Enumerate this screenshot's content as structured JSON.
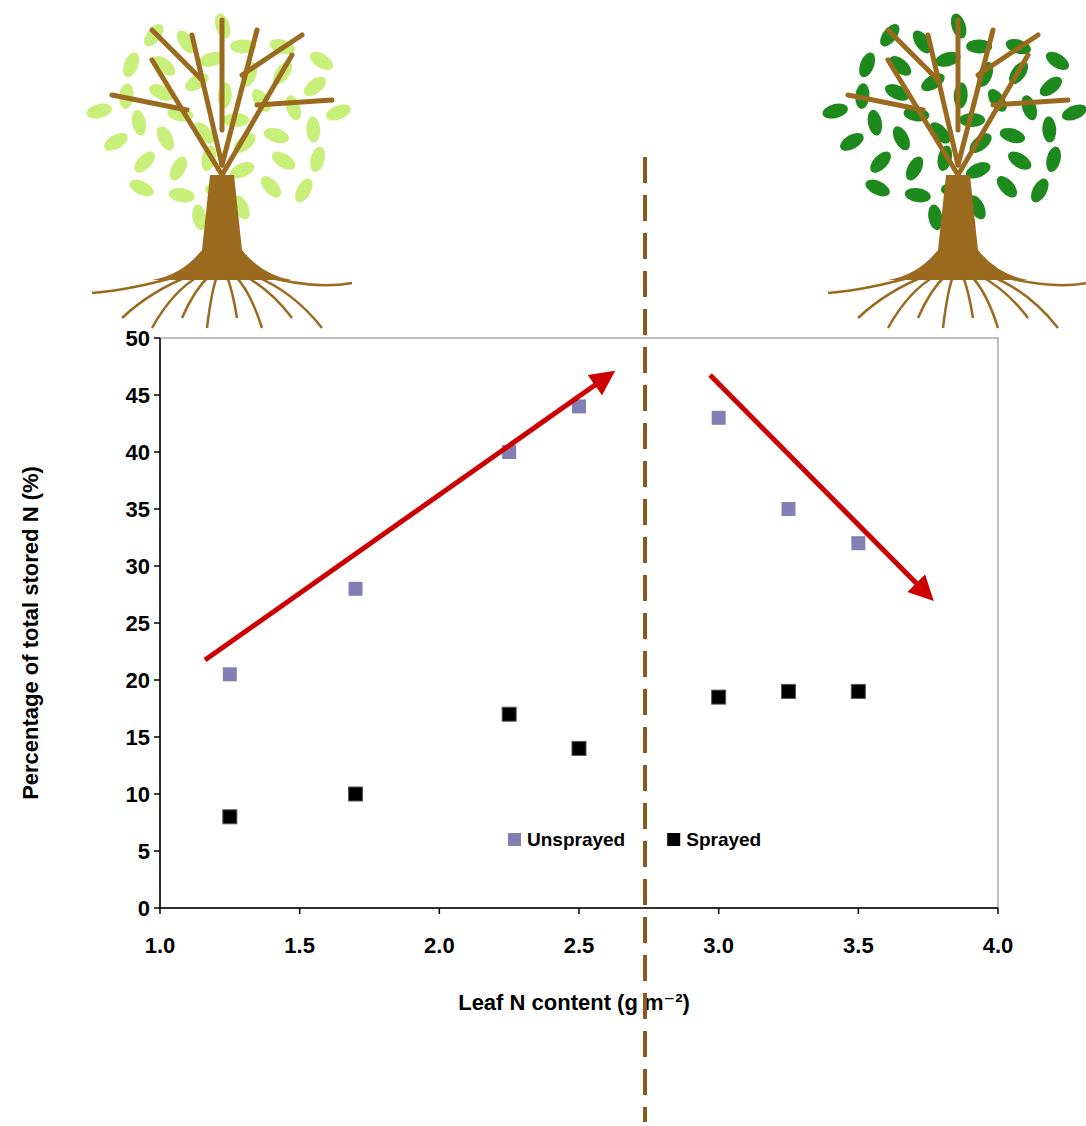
{
  "chart_data": {
    "type": "scatter",
    "x_label": "Leaf N content (g m⁻²)",
    "y_label": "Percentage of total stored N (%)",
    "xlim": [
      1.0,
      4.0
    ],
    "xticks": [
      {
        "value": 1.0,
        "label": "1.0"
      },
      {
        "value": 1.5,
        "label": "1.5"
      },
      {
        "value": 2.0,
        "label": "2.0"
      },
      {
        "value": 2.5,
        "label": "2.5"
      },
      {
        "value": 3.0,
        "label": "3.0"
      },
      {
        "value": 3.5,
        "label": "3.5"
      },
      {
        "value": 4.0,
        "label": "4.0"
      }
    ],
    "ylim": [
      0,
      50
    ],
    "yticks": [
      0,
      5,
      10,
      15,
      20,
      25,
      30,
      35,
      40,
      45,
      50
    ],
    "legend": "bottom",
    "grid": false,
    "series": [
      {
        "name": "Unsprayed",
        "color": "#8080b4",
        "marker": "square",
        "x": [
          1.25,
          1.7,
          2.25,
          2.5,
          3.0,
          3.25,
          3.5
        ],
        "values": [
          20.5,
          28,
          40,
          44,
          43,
          35,
          32
        ]
      },
      {
        "name": "Sprayed",
        "color": "#000000",
        "marker": "square",
        "x": [
          1.25,
          1.7,
          2.25,
          2.5,
          3.0,
          3.25,
          3.5
        ],
        "values": [
          8,
          10,
          17,
          14,
          18.5,
          19,
          19
        ]
      }
    ]
  }
}
